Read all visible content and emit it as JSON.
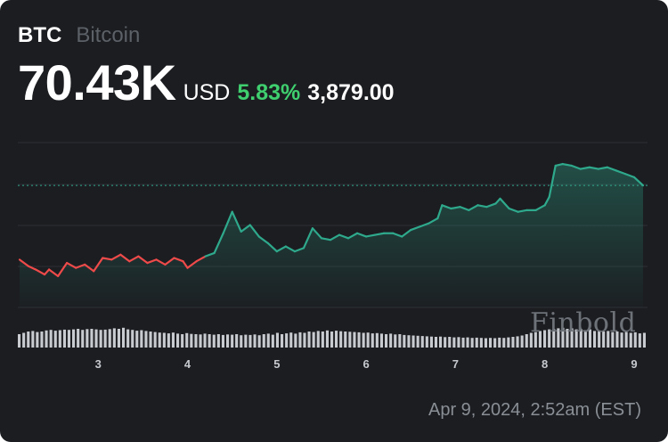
{
  "header": {
    "symbol": "BTC",
    "name": "Bitcoin",
    "price": "70.43K",
    "currency": "USD",
    "change_percent": "5.83%",
    "change_absolute": "3,879.00"
  },
  "timestamp": "Apr 9, 2024, 2:52am (EST)",
  "watermark": "Finbold",
  "colors": {
    "up": "#2fa98c",
    "down": "#ef4a4a",
    "positive_text": "#3fcf6f",
    "volume": "#c8cbd0",
    "grid": "#2c2f35"
  },
  "chart_data": {
    "type": "line",
    "x_ticks": [
      "3",
      "4",
      "5",
      "6",
      "7",
      "8",
      "9"
    ],
    "x_range": [
      2.1,
      9.15
    ],
    "grid": true,
    "reference_line": "dotted line at the current price",
    "color_rule": "red below the opening level, green above",
    "series": [
      {
        "values": [
          [
            2.12,
            0.29
          ],
          [
            2.22,
            0.25
          ],
          [
            2.3,
            0.23
          ],
          [
            2.4,
            0.2
          ],
          [
            2.45,
            0.23
          ],
          [
            2.55,
            0.19
          ],
          [
            2.65,
            0.27
          ],
          [
            2.75,
            0.24
          ],
          [
            2.85,
            0.26
          ],
          [
            2.95,
            0.22
          ],
          [
            3.05,
            0.3
          ],
          [
            3.15,
            0.29
          ],
          [
            3.25,
            0.32
          ],
          [
            3.35,
            0.28
          ],
          [
            3.45,
            0.31
          ],
          [
            3.55,
            0.27
          ],
          [
            3.65,
            0.29
          ],
          [
            3.75,
            0.26
          ],
          [
            3.85,
            0.3
          ],
          [
            3.95,
            0.28
          ],
          [
            4.0,
            0.24
          ],
          [
            4.1,
            0.28
          ],
          [
            4.2,
            0.31
          ],
          [
            4.3,
            0.33
          ],
          [
            4.4,
            0.45
          ],
          [
            4.5,
            0.58
          ],
          [
            4.6,
            0.46
          ],
          [
            4.7,
            0.5
          ],
          [
            4.8,
            0.43
          ],
          [
            4.9,
            0.39
          ],
          [
            5.0,
            0.34
          ],
          [
            5.1,
            0.37
          ],
          [
            5.2,
            0.34
          ],
          [
            5.3,
            0.36
          ],
          [
            5.4,
            0.48
          ],
          [
            5.5,
            0.42
          ],
          [
            5.6,
            0.41
          ],
          [
            5.7,
            0.44
          ],
          [
            5.8,
            0.42
          ],
          [
            5.9,
            0.45
          ],
          [
            6.0,
            0.43
          ],
          [
            6.1,
            0.44
          ],
          [
            6.2,
            0.45
          ],
          [
            6.3,
            0.45
          ],
          [
            6.4,
            0.43
          ],
          [
            6.5,
            0.47
          ],
          [
            6.6,
            0.49
          ],
          [
            6.7,
            0.51
          ],
          [
            6.8,
            0.54
          ],
          [
            6.85,
            0.62
          ],
          [
            6.95,
            0.6
          ],
          [
            7.05,
            0.61
          ],
          [
            7.15,
            0.59
          ],
          [
            7.25,
            0.62
          ],
          [
            7.35,
            0.61
          ],
          [
            7.45,
            0.63
          ],
          [
            7.5,
            0.66
          ],
          [
            7.6,
            0.6
          ],
          [
            7.7,
            0.58
          ],
          [
            7.8,
            0.59
          ],
          [
            7.9,
            0.59
          ],
          [
            8.0,
            0.62
          ],
          [
            8.05,
            0.67
          ],
          [
            8.12,
            0.86
          ],
          [
            8.2,
            0.87
          ],
          [
            8.3,
            0.86
          ],
          [
            8.4,
            0.84
          ],
          [
            8.5,
            0.85
          ],
          [
            8.6,
            0.84
          ],
          [
            8.7,
            0.85
          ],
          [
            8.8,
            0.83
          ],
          [
            8.9,
            0.81
          ],
          [
            9.0,
            0.79
          ],
          [
            9.1,
            0.74
          ]
        ]
      }
    ],
    "volume": [
      0.5,
      0.55,
      0.6,
      0.62,
      0.58,
      0.6,
      0.64,
      0.66,
      0.63,
      0.65,
      0.67,
      0.66,
      0.68,
      0.7,
      0.66,
      0.69,
      0.7,
      0.68,
      0.66,
      0.67,
      0.69,
      0.72,
      0.7,
      0.74,
      0.68,
      0.66,
      0.63,
      0.65,
      0.62,
      0.6,
      0.58,
      0.56,
      0.55,
      0.53,
      0.56,
      0.52,
      0.5,
      0.54,
      0.51,
      0.5,
      0.49,
      0.52,
      0.5,
      0.48,
      0.5,
      0.47,
      0.49,
      0.48,
      0.5,
      0.46,
      0.48,
      0.47,
      0.49,
      0.46,
      0.5,
      0.52,
      0.48,
      0.55,
      0.5,
      0.53,
      0.56,
      0.52,
      0.57,
      0.55,
      0.6,
      0.58,
      0.62,
      0.6,
      0.64,
      0.6,
      0.63,
      0.61,
      0.6,
      0.59,
      0.58,
      0.57,
      0.55,
      0.56,
      0.53,
      0.54,
      0.52,
      0.5,
      0.52,
      0.49,
      0.5,
      0.47,
      0.46,
      0.45,
      0.44,
      0.43,
      0.42,
      0.41,
      0.4,
      0.41,
      0.39,
      0.4,
      0.38,
      0.39,
      0.37,
      0.38,
      0.36,
      0.37,
      0.36,
      0.35,
      0.36,
      0.35,
      0.37,
      0.36,
      0.38,
      0.4,
      0.42,
      0.45,
      0.5,
      0.55,
      0.58,
      0.62,
      0.65,
      0.68,
      0.7,
      0.72,
      0.74,
      0.7,
      0.72,
      0.68,
      0.7,
      0.65,
      0.68,
      0.62,
      0.64,
      0.6,
      0.62,
      0.58,
      0.6,
      0.56,
      0.58,
      0.55,
      0.57,
      0.53,
      0.55
    ]
  }
}
